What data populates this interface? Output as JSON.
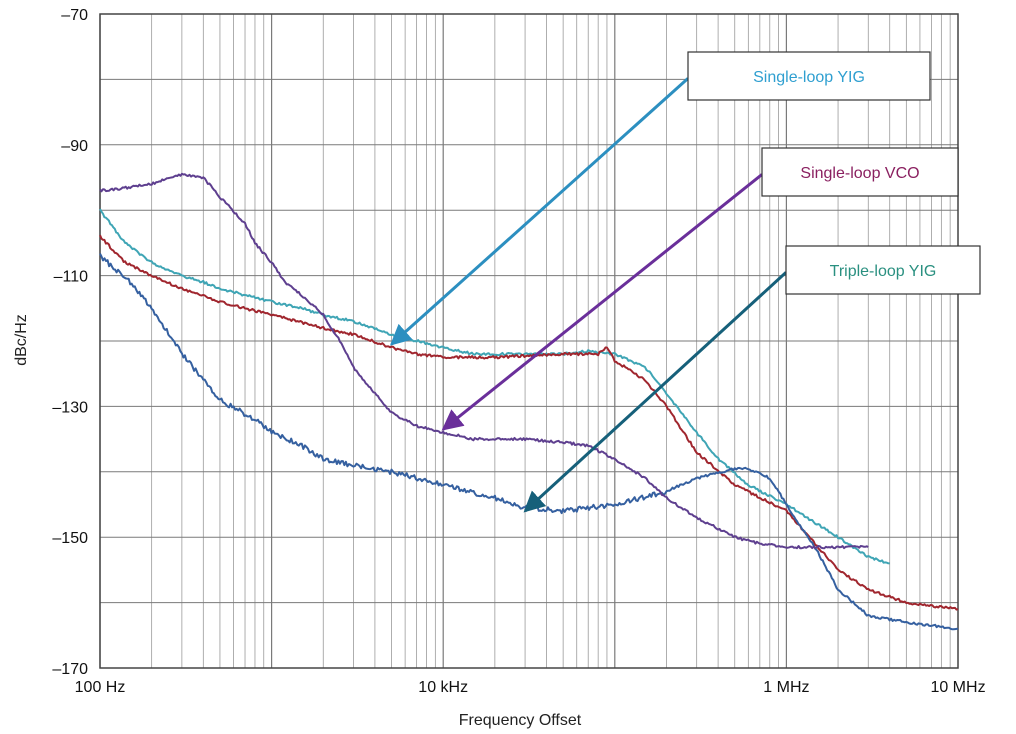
{
  "chart_data": {
    "type": "line",
    "xlabel": "Frequency Offset",
    "ylabel": "dBc/Hz",
    "x_scale": "log",
    "xlim": [
      100,
      10000000
    ],
    "ylim": [
      -170,
      -70
    ],
    "grid": true,
    "x_ticks": [
      {
        "value": 100,
        "label": "100 Hz"
      },
      {
        "value": 10000,
        "label": "10 kHz"
      },
      {
        "value": 1000000,
        "label": "1 MHz"
      },
      {
        "value": 10000000,
        "label": "10 MHz"
      }
    ],
    "y_ticks": [
      {
        "value": -70,
        "label": "–70"
      },
      {
        "value": -90,
        "label": "–90"
      },
      {
        "value": -110,
        "label": "–110"
      },
      {
        "value": -130,
        "label": "–130"
      },
      {
        "value": -150,
        "label": "–150"
      },
      {
        "value": -170,
        "label": "–170"
      }
    ],
    "series": [
      {
        "name": "Single-loop YIG",
        "color": "#3fa5b5",
        "x": [
          100,
          140,
          200,
          300,
          400,
          500,
          700,
          1000,
          1500,
          2000,
          3000,
          5000,
          7000,
          10000,
          15000,
          20000,
          30000,
          50000,
          70000,
          100000,
          150000,
          200000,
          300000,
          400000,
          600000,
          1000000,
          2000000,
          3000000,
          4000000
        ],
        "y": [
          -100,
          -105,
          -108,
          -110,
          -111,
          -112,
          -113,
          -114,
          -115,
          -116,
          -117,
          -119,
          -120,
          -121,
          -122,
          -122,
          -122,
          -122,
          -121.5,
          -122,
          -124,
          -128,
          -134,
          -138,
          -142,
          -145,
          -150,
          -153,
          -154
        ]
      },
      {
        "name": "Single-loop VCO",
        "color": "#a0262e",
        "x": [
          100,
          140,
          200,
          300,
          500,
          700,
          1000,
          2000,
          3000,
          5000,
          7000,
          10000,
          20000,
          50000,
          80000,
          90000,
          100000,
          150000,
          200000,
          300000,
          500000,
          1000000,
          2000000,
          3000000,
          5000000,
          10000000
        ],
        "y": [
          -104,
          -108,
          -110,
          -112,
          -114,
          -115,
          -116,
          -118,
          -119,
          -121,
          -122,
          -122.5,
          -122.5,
          -122,
          -122,
          -121,
          -123,
          -126,
          -130,
          -137,
          -142,
          -146,
          -155,
          -158,
          -160,
          -161
        ]
      },
      {
        "name": "Triple-loop YIG",
        "color": "#3560a0",
        "x": [
          100,
          150,
          200,
          300,
          500,
          800,
          1000,
          1500,
          2000,
          3000,
          5000,
          10000,
          20000,
          30000,
          50000,
          100000,
          200000,
          300000,
          500000,
          600000,
          800000,
          1000000,
          1500000,
          2000000,
          3000000,
          5000000,
          10000000
        ],
        "y": [
          -107,
          -111,
          -115,
          -122,
          -129,
          -132,
          -134,
          -136,
          -138,
          -139,
          -140,
          -142,
          -144,
          -145.5,
          -146,
          -145,
          -143,
          -141,
          -139.5,
          -139.5,
          -141,
          -145,
          -152,
          -158,
          -162,
          -163,
          -164
        ]
      },
      {
        "name": "",
        "color": "#5e3f8f",
        "x": [
          100,
          150,
          200,
          250,
          300,
          400,
          500,
          700,
          800,
          1000,
          1200,
          1500,
          2000,
          2500,
          3000,
          4000,
          5000,
          7000,
          10000,
          15000,
          20000,
          30000,
          50000,
          70000,
          100000,
          150000,
          200000,
          300000,
          500000,
          700000,
          1000000,
          2000000,
          3000000
        ],
        "y": [
          -97,
          -96.5,
          -96,
          -95,
          -94.5,
          -95,
          -98,
          -102,
          -105,
          -108,
          -111,
          -113,
          -116,
          -120,
          -124,
          -128,
          -131,
          -133,
          -134,
          -135,
          -135,
          -135,
          -135.5,
          -136,
          -138,
          -141,
          -144,
          -147,
          -150,
          -151,
          -151.5,
          -151.5,
          -151.5
        ]
      }
    ],
    "callouts": [
      {
        "label": "Single-loop YIG",
        "color": "#2f9fd0",
        "points_to_series": "Single-loop YIG",
        "target": {
          "x": 5000,
          "y": -120.5
        }
      },
      {
        "label": "Single-loop VCO",
        "color": "#8a2060",
        "points_to_series": "",
        "target": {
          "x": 10000,
          "y": -133.5
        }
      },
      {
        "label": "Triple-loop YIG",
        "color": "#2a9080",
        "points_to_series": "Triple-loop YIG",
        "target": {
          "x": 30000,
          "y": -146
        }
      }
    ],
    "arrow_colors": [
      "#2c8fc0",
      "#6a2f9a",
      "#16607a"
    ]
  }
}
